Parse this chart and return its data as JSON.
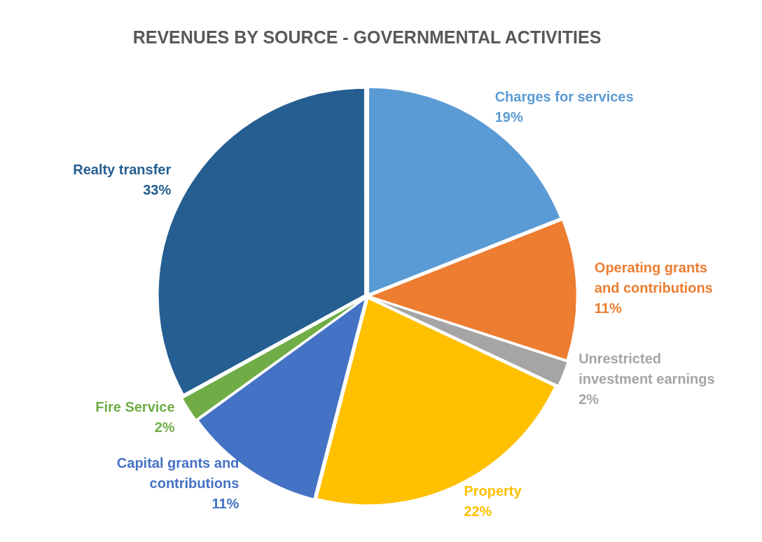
{
  "chart_data": {
    "type": "pie",
    "title": "REVENUES BY SOURCE - GOVERNMENTAL ACTIVITIES",
    "categories": [
      "Charges for services",
      "Operating grants and contributions",
      "Unrestricted investment earnings",
      "Property",
      "Capital grants and contributions",
      "Fire Service",
      "Realty transfer"
    ],
    "values": [
      19,
      11,
      2,
      22,
      11,
      2,
      33
    ],
    "value_labels": [
      "19%",
      "11%",
      "2%",
      "22%",
      "11%",
      "2%",
      "33%"
    ],
    "colors": [
      "#5b9bd5",
      "#ed7d31",
      "#a5a5a5",
      "#ffc000",
      "#4472c4",
      "#70ad47",
      "#255e91"
    ],
    "legend": false
  }
}
